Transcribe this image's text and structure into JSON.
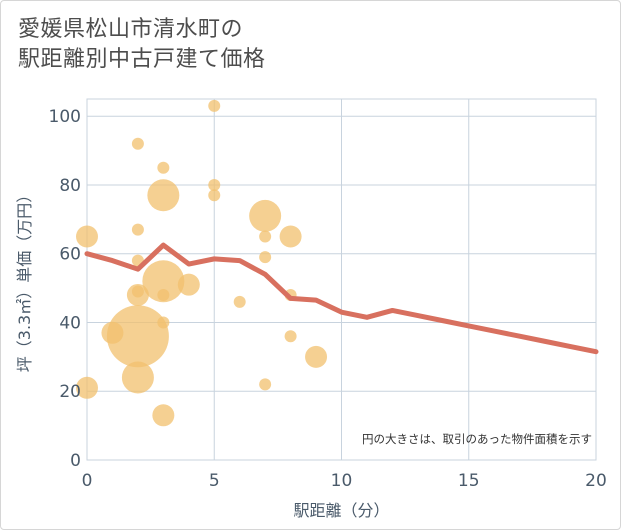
{
  "chart_data": {
    "type": "scatter+line",
    "title_lines": [
      "愛媛県松山市清水町の",
      "駅距離別中古戸建て価格"
    ],
    "xlabel": "駅距離（分）",
    "ylabel": "坪（3.3㎡）単価（万円）",
    "xlim": [
      0,
      20
    ],
    "ylim": [
      0,
      105
    ],
    "xticks": [
      0,
      5,
      10,
      15,
      20
    ],
    "yticks": [
      0,
      20,
      40,
      60,
      80,
      100
    ],
    "annotation": "円の大きさは、取引のあった物件面積を示す",
    "colors": {
      "bubble": "#f2c06e",
      "line": "#d8705f",
      "grid": "#c8d3de",
      "axis_text": "#4a5a6a"
    },
    "bubbles": [
      {
        "x": 0,
        "y": 65,
        "size": 2
      },
      {
        "x": 0,
        "y": 21,
        "size": 2
      },
      {
        "x": 1,
        "y": 37,
        "size": 2
      },
      {
        "x": 2,
        "y": 92,
        "size": 1
      },
      {
        "x": 2,
        "y": 67,
        "size": 1
      },
      {
        "x": 2,
        "y": 58,
        "size": 1
      },
      {
        "x": 2,
        "y": 49,
        "size": 1
      },
      {
        "x": 2,
        "y": 48,
        "size": 2
      },
      {
        "x": 2,
        "y": 36,
        "size": 6
      },
      {
        "x": 2,
        "y": 24,
        "size": 3
      },
      {
        "x": 3,
        "y": 85,
        "size": 1
      },
      {
        "x": 3,
        "y": 77,
        "size": 3
      },
      {
        "x": 3,
        "y": 52,
        "size": 4
      },
      {
        "x": 3,
        "y": 48,
        "size": 1
      },
      {
        "x": 3,
        "y": 40,
        "size": 1
      },
      {
        "x": 3,
        "y": 13,
        "size": 2
      },
      {
        "x": 4,
        "y": 51,
        "size": 2
      },
      {
        "x": 5,
        "y": 103,
        "size": 1
      },
      {
        "x": 5,
        "y": 80,
        "size": 1
      },
      {
        "x": 5,
        "y": 77,
        "size": 1
      },
      {
        "x": 6,
        "y": 46,
        "size": 1
      },
      {
        "x": 7,
        "y": 71,
        "size": 3
      },
      {
        "x": 7,
        "y": 65,
        "size": 1
      },
      {
        "x": 7,
        "y": 59,
        "size": 1
      },
      {
        "x": 7,
        "y": 22,
        "size": 1
      },
      {
        "x": 8,
        "y": 65,
        "size": 2
      },
      {
        "x": 8,
        "y": 48,
        "size": 1
      },
      {
        "x": 8,
        "y": 36,
        "size": 1
      },
      {
        "x": 9,
        "y": 30,
        "size": 2
      }
    ],
    "line": {
      "x": [
        0,
        1,
        2,
        3,
        4,
        5,
        6,
        7,
        8,
        9,
        10,
        11,
        12,
        13,
        14,
        15,
        16,
        17,
        18,
        19,
        20
      ],
      "y": [
        60,
        58,
        55.5,
        62.5,
        57,
        58.5,
        58,
        54,
        47,
        46.5,
        43,
        41.5,
        43.5,
        42,
        40.5,
        39,
        37.5,
        36,
        34.5,
        33,
        31.5
      ]
    }
  }
}
